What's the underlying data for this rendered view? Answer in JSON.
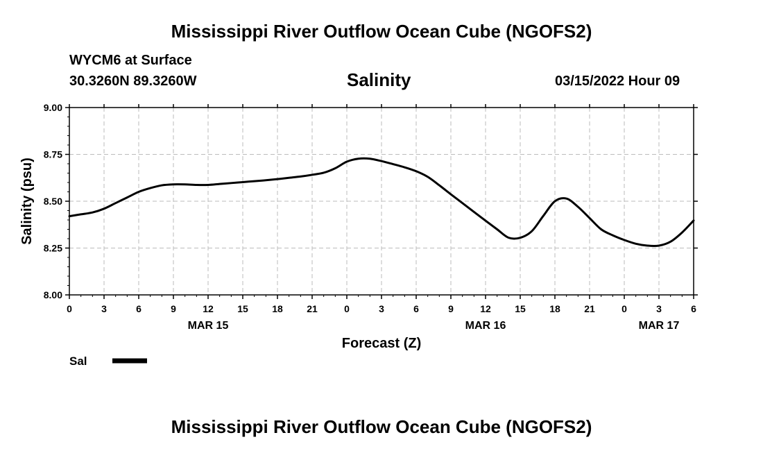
{
  "page": {
    "title_top": "Mississippi River Outflow Ocean Cube (NGOFS2)",
    "title_bottom": "Mississippi River Outflow Ocean Cube (NGOFS2)",
    "station_line": "WYCM6 at Surface",
    "coords_line": "30.3260N  89.3260W",
    "datetime_line": "03/15/2022 Hour 09"
  },
  "chart_data": {
    "type": "line",
    "title": "Salinity",
    "xlabel": "Forecast (Z)",
    "ylabel": "Salinity (psu)",
    "ylim": [
      8.0,
      9.0
    ],
    "yticks": [
      8.0,
      8.25,
      8.5,
      8.75,
      9.0
    ],
    "ytick_labels": [
      "8.00",
      "8.25",
      "8.50",
      "8.75",
      "9.00"
    ],
    "xlim": [
      0,
      54
    ],
    "xticks": [
      0,
      3,
      6,
      9,
      12,
      15,
      18,
      21,
      24,
      27,
      30,
      33,
      36,
      39,
      42,
      45,
      48,
      51,
      54
    ],
    "xtick_labels": [
      "0",
      "3",
      "6",
      "9",
      "12",
      "15",
      "18",
      "21",
      "0",
      "3",
      "6",
      "9",
      "12",
      "15",
      "18",
      "21",
      "0",
      "3",
      "6"
    ],
    "date_labels": [
      {
        "hour": 12,
        "label": "MAR 15"
      },
      {
        "hour": 36,
        "label": "MAR 16"
      },
      {
        "hour": 51,
        "label": "MAR 17"
      }
    ],
    "grid": true,
    "legend": {
      "position": "bottom-left",
      "entries": [
        "Sal"
      ]
    },
    "series": [
      {
        "name": "Sal",
        "color": "#000000",
        "x": [
          0,
          1,
          2,
          3,
          4,
          5,
          6,
          7,
          8,
          9,
          10,
          11,
          12,
          13,
          14,
          15,
          16,
          17,
          18,
          19,
          20,
          21,
          22,
          23,
          24,
          25,
          26,
          27,
          28,
          29,
          30,
          31,
          32,
          33,
          34,
          35,
          36,
          37,
          38,
          39,
          40,
          41,
          42,
          43,
          44,
          45,
          46,
          47,
          48,
          49,
          50,
          51,
          52,
          53,
          54
        ],
        "y": [
          8.42,
          8.43,
          8.44,
          8.46,
          8.49,
          8.52,
          8.55,
          8.57,
          8.585,
          8.59,
          8.59,
          8.587,
          8.587,
          8.592,
          8.597,
          8.602,
          8.607,
          8.612,
          8.618,
          8.625,
          8.632,
          8.641,
          8.652,
          8.676,
          8.711,
          8.727,
          8.727,
          8.714,
          8.698,
          8.681,
          8.66,
          8.63,
          8.585,
          8.537,
          8.49,
          8.443,
          8.396,
          8.35,
          8.305,
          8.305,
          8.34,
          8.422,
          8.5,
          8.514,
          8.47,
          8.41,
          8.35,
          8.318,
          8.293,
          8.273,
          8.263,
          8.263,
          8.284,
          8.333,
          8.397
        ]
      }
    ]
  }
}
